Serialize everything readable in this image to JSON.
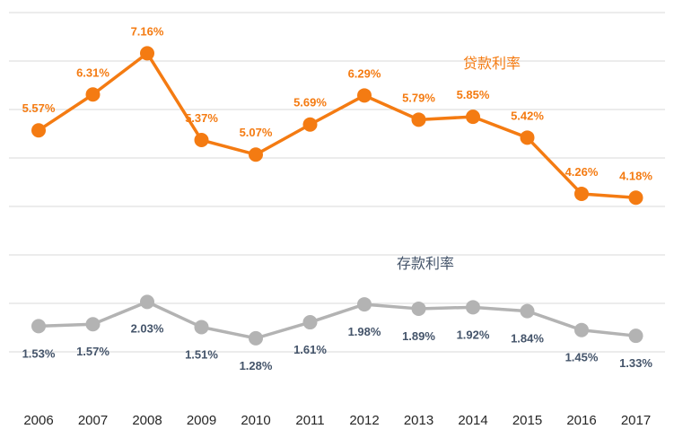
{
  "chart_data": {
    "type": "line",
    "title": "",
    "xlabel": "",
    "ylabel": "",
    "grid": true,
    "legend": "inline",
    "ylim": [
      0,
      8.5
    ],
    "x": [
      "2006",
      "2007",
      "2008",
      "2009",
      "2010",
      "2011",
      "2012",
      "2013",
      "2014",
      "2015",
      "2016",
      "2017"
    ],
    "series": [
      {
        "name": "贷款利率",
        "color": "#f47b12",
        "values": [
          5.57,
          6.31,
          7.16,
          5.37,
          5.07,
          5.69,
          6.29,
          5.79,
          5.85,
          5.42,
          4.26,
          4.18
        ],
        "labels": [
          "5.57%",
          "6.31%",
          "7.16%",
          "5.37%",
          "5.07%",
          "5.69%",
          "6.29%",
          "5.79%",
          "5.85%",
          "5.42%",
          "4.26%",
          "4.18%"
        ]
      },
      {
        "name": "存款利率",
        "color": "#b3b3b3",
        "label_color": "#44546a",
        "values": [
          1.53,
          1.57,
          2.03,
          1.51,
          1.28,
          1.61,
          1.98,
          1.89,
          1.92,
          1.84,
          1.45,
          1.33
        ],
        "labels": [
          "1.53%",
          "1.57%",
          "2.03%",
          "1.51%",
          "1.28%",
          "1.61%",
          "1.98%",
          "1.89%",
          "1.92%",
          "1.84%",
          "1.45%",
          "1.33%"
        ]
      }
    ]
  }
}
